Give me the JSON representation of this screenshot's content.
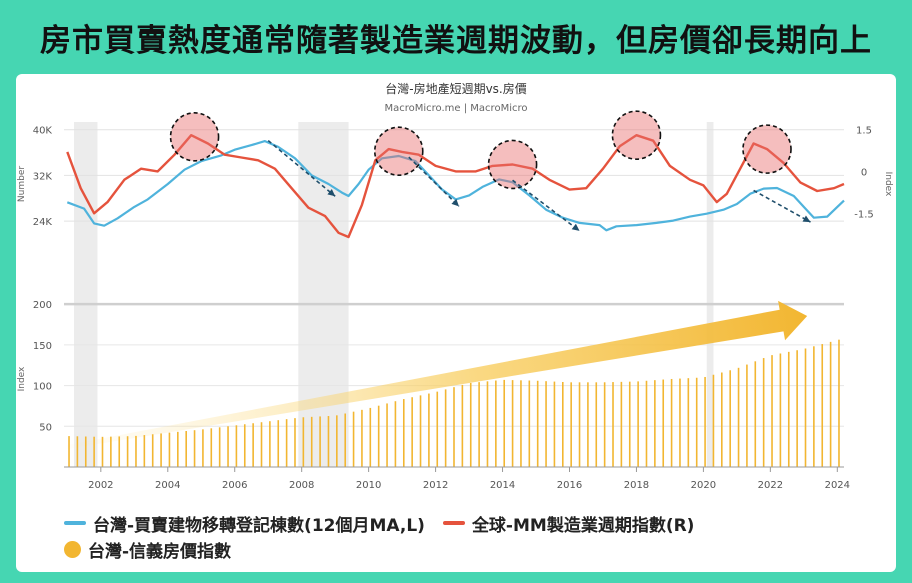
{
  "headline": "房市買賣熱度通常隨著製造業週期波動，但房價卻長期向上",
  "chart_data": {
    "type": "line",
    "title": "台灣-房地產短週期vs.房價",
    "subtitle": "MacroMicro.me | MacroMicro",
    "x_ticks": [
      "2002",
      "2004",
      "2006",
      "2008",
      "2010",
      "2012",
      "2014",
      "2016",
      "2018",
      "2020",
      "2022",
      "2024"
    ],
    "x_range": [
      2000.9,
      2024.2
    ],
    "upper": {
      "left_axis_label": "Number",
      "left_ticks": [
        "40K",
        "32K",
        "24K"
      ],
      "left_range": [
        20000,
        41000
      ],
      "right_axis_label": "Index",
      "right_ticks": [
        "1.5",
        "0",
        "-1.5"
      ],
      "right_range": [
        -2.6,
        1.7
      ]
    },
    "lower": {
      "axis_label": "Index",
      "ticks": [
        "200",
        "150",
        "100",
        "50"
      ],
      "range": [
        0,
        210
      ]
    },
    "shaded_periods": [
      [
        2001.2,
        2001.9
      ],
      [
        2007.9,
        2009.4
      ],
      [
        2020.1,
        2020.3
      ]
    ],
    "series": [
      {
        "name": "台灣-買賣建物移轉登記棟數(12個月MA,L)",
        "color": "#4fb3dc",
        "axis": "left",
        "points": [
          [
            2001.0,
            27300
          ],
          [
            2001.5,
            26200
          ],
          [
            2001.8,
            23600
          ],
          [
            2002.1,
            23200
          ],
          [
            2002.5,
            24500
          ],
          [
            2003.0,
            26500
          ],
          [
            2003.4,
            27800
          ],
          [
            2004.0,
            30500
          ],
          [
            2004.5,
            33000
          ],
          [
            2005.0,
            34500
          ],
          [
            2005.6,
            35500
          ],
          [
            2006.0,
            36500
          ],
          [
            2006.5,
            37300
          ],
          [
            2006.9,
            38000
          ],
          [
            2007.3,
            37000
          ],
          [
            2007.8,
            35000
          ],
          [
            2008.3,
            32000
          ],
          [
            2008.8,
            30500
          ],
          [
            2009.2,
            29000
          ],
          [
            2009.4,
            28400
          ],
          [
            2009.7,
            30500
          ],
          [
            2010.0,
            33000
          ],
          [
            2010.4,
            35000
          ],
          [
            2010.9,
            35400
          ],
          [
            2011.4,
            34500
          ],
          [
            2011.8,
            32000
          ],
          [
            2012.2,
            29500
          ],
          [
            2012.6,
            27800
          ],
          [
            2013.0,
            28500
          ],
          [
            2013.4,
            30000
          ],
          [
            2013.9,
            31300
          ],
          [
            2014.3,
            30800
          ],
          [
            2014.8,
            28500
          ],
          [
            2015.3,
            26000
          ],
          [
            2015.8,
            24600
          ],
          [
            2016.3,
            23700
          ],
          [
            2016.9,
            23300
          ],
          [
            2017.1,
            22400
          ],
          [
            2017.4,
            23100
          ],
          [
            2018.0,
            23300
          ],
          [
            2018.6,
            23700
          ],
          [
            2019.1,
            24100
          ],
          [
            2019.6,
            24800
          ],
          [
            2020.1,
            25300
          ],
          [
            2020.6,
            26000
          ],
          [
            2021.0,
            27000
          ],
          [
            2021.4,
            28800
          ],
          [
            2021.8,
            29700
          ],
          [
            2022.2,
            29800
          ],
          [
            2022.7,
            28400
          ],
          [
            2023.0,
            26500
          ],
          [
            2023.3,
            24600
          ],
          [
            2023.7,
            24800
          ],
          [
            2024.0,
            26500
          ],
          [
            2024.2,
            27600
          ]
        ]
      },
      {
        "name": "全球-MM製造業週期指數(R)",
        "color": "#e5533d",
        "axis": "right",
        "points": [
          [
            2001.0,
            0.7
          ],
          [
            2001.4,
            -0.6
          ],
          [
            2001.8,
            -1.5
          ],
          [
            2002.2,
            -1.1
          ],
          [
            2002.7,
            -0.3
          ],
          [
            2003.2,
            0.1
          ],
          [
            2003.7,
            0.0
          ],
          [
            2004.2,
            0.6
          ],
          [
            2004.7,
            1.3
          ],
          [
            2005.2,
            1.0
          ],
          [
            2005.7,
            0.6
          ],
          [
            2006.2,
            0.5
          ],
          [
            2006.7,
            0.4
          ],
          [
            2007.2,
            0.1
          ],
          [
            2007.7,
            -0.6
          ],
          [
            2008.2,
            -1.3
          ],
          [
            2008.7,
            -1.6
          ],
          [
            2009.1,
            -2.2
          ],
          [
            2009.4,
            -2.35
          ],
          [
            2009.8,
            -1.2
          ],
          [
            2010.2,
            0.4
          ],
          [
            2010.6,
            0.8
          ],
          [
            2011.0,
            0.7
          ],
          [
            2011.5,
            0.6
          ],
          [
            2012.0,
            0.2
          ],
          [
            2012.6,
            0.0
          ],
          [
            2013.2,
            0.0
          ],
          [
            2013.7,
            0.2
          ],
          [
            2014.3,
            0.25
          ],
          [
            2014.9,
            0.1
          ],
          [
            2015.4,
            -0.3
          ],
          [
            2016.0,
            -0.65
          ],
          [
            2016.5,
            -0.6
          ],
          [
            2017.0,
            0.1
          ],
          [
            2017.5,
            0.9
          ],
          [
            2018.0,
            1.3
          ],
          [
            2018.5,
            1.1
          ],
          [
            2019.0,
            0.2
          ],
          [
            2019.6,
            -0.3
          ],
          [
            2020.0,
            -0.5
          ],
          [
            2020.4,
            -1.1
          ],
          [
            2020.7,
            -0.8
          ],
          [
            2021.1,
            0.1
          ],
          [
            2021.5,
            1.0
          ],
          [
            2021.9,
            0.8
          ],
          [
            2022.4,
            0.3
          ],
          [
            2022.9,
            -0.4
          ],
          [
            2023.4,
            -0.7
          ],
          [
            2023.9,
            -0.6
          ],
          [
            2024.2,
            -0.45
          ]
        ]
      },
      {
        "name": "台灣-信義房價指數",
        "color": "#f2b631",
        "axis": "lower",
        "points": [
          [
            2001.0,
            38
          ],
          [
            2002.0,
            37
          ],
          [
            2003.0,
            38
          ],
          [
            2004.0,
            42
          ],
          [
            2005.0,
            46
          ],
          [
            2006.0,
            51
          ],
          [
            2007.0,
            56
          ],
          [
            2008.0,
            61
          ],
          [
            2009.0,
            63
          ],
          [
            2010.0,
            72
          ],
          [
            2011.0,
            83
          ],
          [
            2012.0,
            92
          ],
          [
            2013.0,
            103
          ],
          [
            2014.0,
            107
          ],
          [
            2015.0,
            106
          ],
          [
            2016.0,
            104
          ],
          [
            2017.0,
            104
          ],
          [
            2018.0,
            105
          ],
          [
            2019.0,
            108
          ],
          [
            2020.0,
            110
          ],
          [
            2021.0,
            121
          ],
          [
            2022.0,
            137
          ],
          [
            2023.0,
            145
          ],
          [
            2024.2,
            158
          ]
        ]
      }
    ]
  },
  "legend": {
    "blue_label": "台灣-買賣建物移轉登記棟數(12個月MA,L)",
    "red_label": "全球-MM製造業週期指數(R)",
    "orange_label": "台灣-信義房價指數"
  }
}
